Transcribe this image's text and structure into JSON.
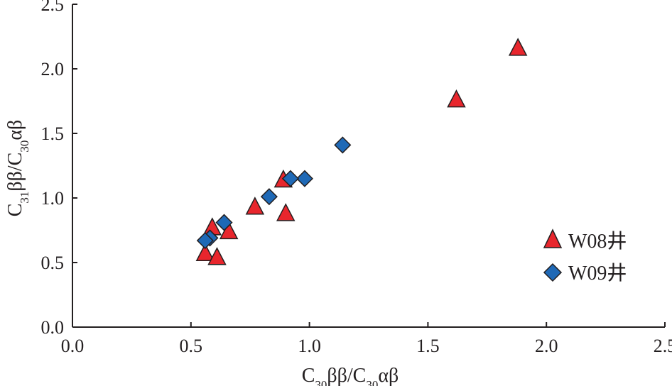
{
  "chart_data": {
    "type": "scatter",
    "xlabel": "C30ββ/C30αβ",
    "ylabel": "C31ββ/C30αβ",
    "xlim": [
      0.0,
      2.5
    ],
    "ylim": [
      0.0,
      2.5
    ],
    "x_ticks": [
      "0.0",
      "0.5",
      "1.0",
      "1.5",
      "2.0",
      "2.5"
    ],
    "y_ticks": [
      "0.0",
      "0.5",
      "1.0",
      "1.5",
      "2.0",
      "2.5"
    ],
    "grid": false,
    "legend_position": "right",
    "series": [
      {
        "name": "W08井",
        "marker": "triangle",
        "color": "#e8262d",
        "x": [
          1.88,
          1.62,
          0.89,
          0.9,
          0.77,
          0.66,
          0.59,
          0.56,
          0.61
        ],
        "y": [
          2.16,
          1.76,
          1.14,
          0.88,
          0.93,
          0.74,
          0.77,
          0.57,
          0.54
        ]
      },
      {
        "name": "W09井",
        "marker": "diamond",
        "color": "#1f69b6",
        "x": [
          1.14,
          0.98,
          0.92,
          0.83,
          0.64,
          0.58,
          0.56
        ],
        "y": [
          1.41,
          1.15,
          1.15,
          1.01,
          0.81,
          0.69,
          0.67
        ]
      }
    ]
  }
}
